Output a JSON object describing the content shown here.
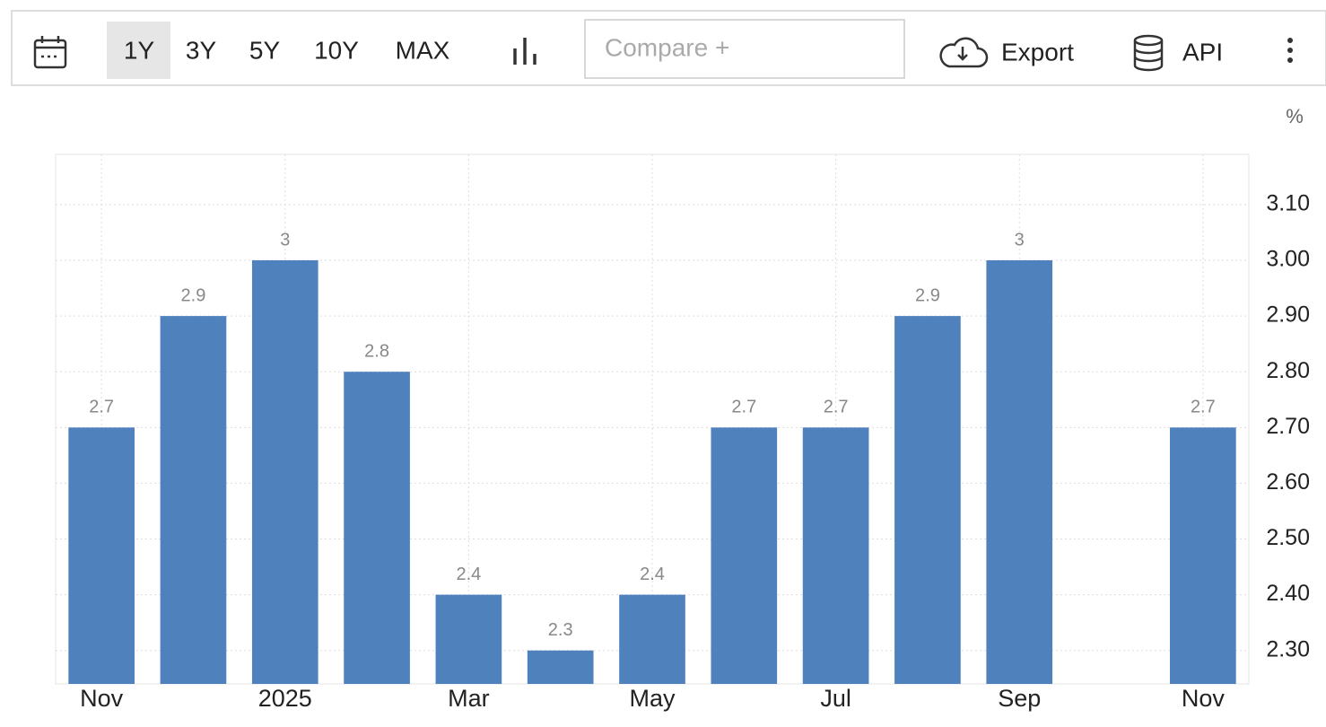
{
  "toolbar": {
    "ranges": [
      "1Y",
      "3Y",
      "5Y",
      "10Y",
      "MAX"
    ],
    "compare": "Compare +",
    "export": "Export",
    "api": "API"
  },
  "chart_data": {
    "type": "bar",
    "unit": "%",
    "categories": [
      "Nov",
      null,
      "2025",
      null,
      "Mar",
      null,
      "May",
      null,
      "Jul",
      null,
      "Sep",
      null,
      "Nov"
    ],
    "values": [
      2.7,
      2.9,
      3,
      2.8,
      2.4,
      2.3,
      2.4,
      2.7,
      2.7,
      2.9,
      3,
      null,
      2.7
    ],
    "color": "#4f81bd",
    "ylim": [
      2.24,
      3.19
    ],
    "yticks": [
      {
        "value": 2.3,
        "label": "2.30"
      },
      {
        "value": 2.4,
        "label": "2.40"
      },
      {
        "value": 2.5,
        "label": "2.50"
      },
      {
        "value": 2.6,
        "label": "2.60"
      },
      {
        "value": 2.7,
        "label": "2.70"
      },
      {
        "value": 2.8,
        "label": "2.80"
      },
      {
        "value": 2.9,
        "label": "2.90"
      },
      {
        "value": 3,
        "label": "3.00"
      },
      {
        "value": 3.1,
        "label": "3.10"
      }
    ],
    "grid": true
  }
}
